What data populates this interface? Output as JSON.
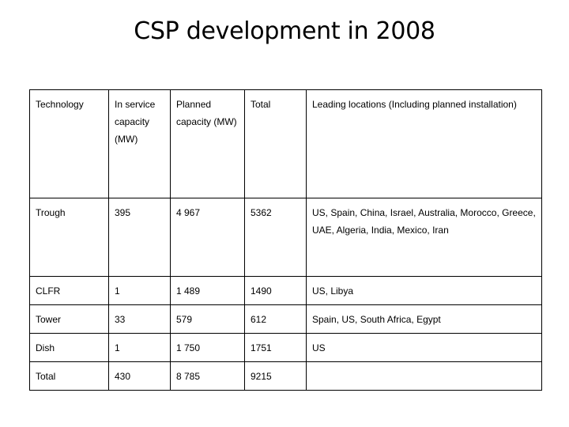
{
  "title": "CSP development in 2008",
  "table": {
    "headers": [
      "Technology",
      "In service capacity (MW)",
      "Planned capacity (MW)",
      "Total",
      "Leading locations (Including planned installation)"
    ],
    "rows": [
      [
        "Trough",
        "395",
        "4 967",
        "5362",
        "US, Spain, China, Israel, Australia, Morocco, Greece, UAE, Algeria, India, Mexico, Iran"
      ],
      [
        "CLFR",
        "1",
        "1 489",
        "1490",
        "US, Libya"
      ],
      [
        "Tower",
        "33",
        "579",
        "612",
        "Spain, US, South Africa, Egypt"
      ],
      [
        "Dish",
        "1",
        "1 750",
        "1751",
        "US"
      ],
      [
        "Total",
        "430",
        "8 785",
        "9215",
        ""
      ]
    ]
  }
}
